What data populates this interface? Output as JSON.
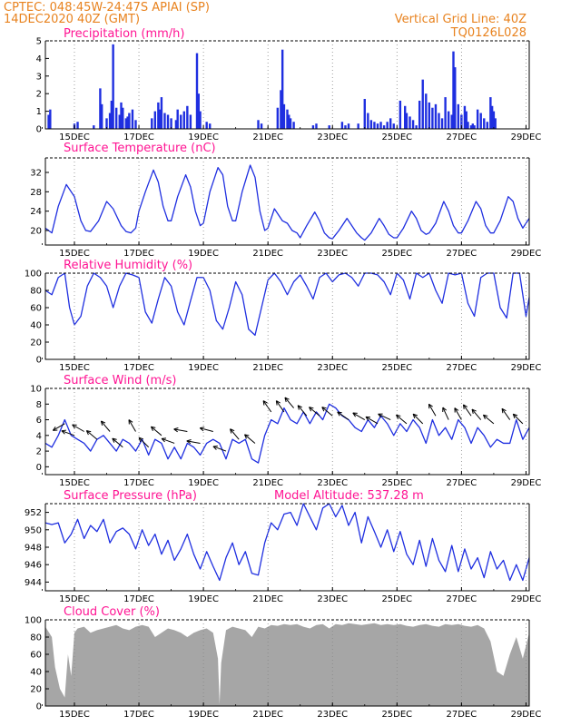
{
  "header": {
    "line1": "CPTEC:   048:45W-24:47S   APIAI (SP)",
    "line2": "14DEC2020 40Z (GMT)",
    "right1": "Vertical Grid Line: 40Z",
    "right2": "TQ0126L028"
  },
  "colors": {
    "header": "#e8821e",
    "titles": "#ff1493",
    "series": "#1f2fe0",
    "cloud": "#a6a6a6",
    "arrows": "#000000"
  },
  "chart_data": [
    {
      "type": "bar",
      "title": "Precipitation (mm/h)",
      "x_ticks": [
        "15DEC",
        "17DEC",
        "19DEC",
        "21DEC",
        "23DEC",
        "25DEC",
        "27DEC",
        "29DEC"
      ],
      "x_range_days": [
        14.1,
        29.1
      ],
      "ylim": [
        0,
        5
      ],
      "y_ticks": [
        0,
        1,
        2,
        3,
        4,
        5
      ],
      "grid": "vertical dotted at 40Z",
      "x": [
        14.2,
        14.25,
        15.0,
        15.1,
        15.6,
        15.8,
        15.85,
        16.0,
        16.1,
        16.15,
        16.2,
        16.3,
        16.4,
        16.45,
        16.5,
        16.6,
        16.65,
        16.7,
        16.8,
        16.9,
        17.4,
        17.5,
        17.6,
        17.65,
        17.7,
        17.8,
        17.9,
        18.0,
        18.15,
        18.2,
        18.3,
        18.4,
        18.5,
        18.6,
        18.8,
        18.85,
        18.9,
        19.1,
        19.2,
        20.7,
        20.8,
        21.3,
        21.4,
        21.45,
        21.5,
        21.6,
        21.65,
        21.7,
        21.8,
        22.4,
        22.5,
        22.9,
        23.3,
        23.4,
        23.5,
        23.8,
        24.0,
        24.1,
        24.2,
        24.3,
        24.4,
        24.5,
        24.6,
        24.7,
        24.8,
        24.9,
        25.1,
        25.25,
        25.3,
        25.4,
        25.5,
        25.6,
        25.7,
        25.8,
        25.9,
        26.0,
        26.1,
        26.2,
        26.3,
        26.4,
        26.5,
        26.6,
        26.7,
        26.75,
        26.8,
        26.9,
        27.0,
        27.1,
        27.15,
        27.2,
        27.3,
        27.35,
        27.4,
        27.5,
        27.6,
        27.7,
        27.8,
        27.9,
        27.95,
        28.0,
        28.05
      ],
      "values": [
        0.8,
        1.1,
        0.3,
        0.4,
        0.2,
        2.3,
        1.4,
        0.6,
        0.9,
        1.6,
        4.8,
        1.2,
        0.8,
        1.5,
        1.2,
        0.6,
        0.7,
        0.9,
        1.1,
        0.5,
        0.6,
        1.0,
        1.5,
        1.1,
        1.8,
        0.9,
        0.8,
        0.6,
        0.5,
        1.1,
        0.8,
        1.0,
        1.3,
        0.8,
        4.3,
        2.0,
        1.0,
        0.4,
        0.3,
        0.5,
        0.3,
        1.2,
        2.2,
        4.5,
        1.4,
        1.1,
        0.8,
        0.6,
        0.4,
        0.2,
        0.3,
        0.2,
        0.4,
        0.2,
        0.3,
        0.3,
        1.7,
        0.9,
        0.5,
        0.4,
        0.3,
        0.4,
        0.2,
        0.4,
        0.6,
        0.3,
        1.6,
        1.3,
        0.9,
        0.7,
        0.5,
        0.2,
        1.6,
        2.8,
        2.0,
        1.5,
        1.2,
        1.4,
        0.9,
        0.6,
        1.8,
        1.0,
        0.8,
        4.4,
        3.5,
        1.4,
        0.8,
        1.3,
        1.0,
        0.4,
        0.2,
        0.3,
        0.2,
        1.1,
        0.9,
        0.6,
        0.4,
        1.8,
        1.3,
        1.0,
        0.6
      ]
    },
    {
      "type": "line",
      "title": "Surface Temperature (nC)",
      "x_ticks": [
        "15DEC",
        "17DEC",
        "19DEC",
        "21DEC",
        "23DEC",
        "25DEC",
        "27DEC",
        "29DEC"
      ],
      "x_range_days": [
        14.1,
        29.1
      ],
      "ylim": [
        17,
        35
      ],
      "y_ticks": [
        20,
        24,
        28,
        32
      ],
      "grid": "vertical dotted at 40Z",
      "x": [
        14.1,
        14.3,
        14.5,
        14.75,
        15.0,
        15.2,
        15.35,
        15.5,
        15.75,
        16.0,
        16.2,
        16.45,
        16.6,
        16.75,
        16.9,
        17.0,
        17.2,
        17.45,
        17.6,
        17.75,
        17.9,
        18.0,
        18.2,
        18.45,
        18.6,
        18.75,
        18.9,
        19.0,
        19.2,
        19.45,
        19.6,
        19.75,
        19.9,
        20.0,
        20.2,
        20.45,
        20.6,
        20.75,
        20.9,
        21.0,
        21.2,
        21.45,
        21.6,
        21.75,
        21.9,
        22.0,
        22.2,
        22.45,
        22.6,
        22.75,
        22.9,
        23.0,
        23.2,
        23.45,
        23.6,
        23.75,
        23.9,
        24.0,
        24.2,
        24.45,
        24.6,
        24.75,
        24.9,
        25.0,
        25.2,
        25.45,
        25.6,
        25.75,
        25.9,
        26.0,
        26.2,
        26.45,
        26.6,
        26.75,
        26.9,
        27.0,
        27.2,
        27.45,
        27.6,
        27.75,
        27.9,
        28.0,
        28.2,
        28.45,
        28.6,
        28.75,
        28.9,
        29.1
      ],
      "values": [
        20.5,
        19.5,
        25,
        29.5,
        27,
        22,
        20,
        19.8,
        22,
        26,
        24.5,
        21,
        19.8,
        19.5,
        20.5,
        24,
        28,
        32.5,
        30,
        25,
        22,
        22,
        27,
        31.5,
        29,
        24,
        21,
        21.5,
        28,
        33,
        31.5,
        25,
        22,
        22,
        28,
        33.5,
        31,
        24,
        20,
        20.5,
        24.5,
        22,
        21.5,
        20,
        19.5,
        18.5,
        21,
        23.8,
        22,
        19.5,
        18.5,
        18.3,
        20,
        22.5,
        21,
        19.5,
        18.5,
        18,
        19.5,
        22.5,
        21,
        19.2,
        18.5,
        18.5,
        20.5,
        24,
        22.5,
        20,
        19.2,
        19.5,
        21.5,
        26,
        24,
        21,
        19.5,
        19.5,
        22,
        26,
        24.5,
        21,
        19.5,
        19.5,
        22,
        27,
        26,
        22.5,
        20.5,
        22.5
      ]
    },
    {
      "type": "line",
      "title": "Relative Humidity (%)",
      "x_ticks": [
        "15DEC",
        "17DEC",
        "19DEC",
        "21DEC",
        "23DEC",
        "25DEC",
        "27DEC",
        "29DEC"
      ],
      "x_range_days": [
        14.1,
        29.1
      ],
      "ylim": [
        0,
        100
      ],
      "y_ticks": [
        0,
        20,
        40,
        60,
        80,
        100
      ],
      "grid": "vertical dotted at 40Z",
      "x": [
        14.1,
        14.3,
        14.5,
        14.7,
        14.85,
        15.0,
        15.2,
        15.4,
        15.6,
        15.8,
        16.0,
        16.2,
        16.4,
        16.6,
        16.8,
        17.0,
        17.2,
        17.4,
        17.6,
        17.8,
        18.0,
        18.2,
        18.4,
        18.6,
        18.8,
        19.0,
        19.2,
        19.4,
        19.6,
        19.8,
        20.0,
        20.2,
        20.4,
        20.6,
        20.8,
        21.0,
        21.2,
        21.4,
        21.6,
        21.8,
        22.0,
        22.2,
        22.4,
        22.6,
        22.8,
        23.0,
        23.2,
        23.4,
        23.6,
        23.8,
        24.0,
        24.2,
        24.4,
        24.6,
        24.8,
        25.0,
        25.2,
        25.4,
        25.6,
        25.8,
        26.0,
        26.2,
        26.4,
        26.6,
        26.8,
        27.0,
        27.2,
        27.4,
        27.6,
        27.8,
        28.0,
        28.2,
        28.4,
        28.6,
        28.8,
        29.0,
        29.1
      ],
      "values": [
        80,
        75,
        95,
        100,
        60,
        40,
        50,
        85,
        100,
        95,
        85,
        60,
        85,
        100,
        98,
        95,
        55,
        42,
        70,
        95,
        85,
        55,
        40,
        68,
        95,
        95,
        80,
        45,
        35,
        60,
        90,
        75,
        35,
        28,
        60,
        92,
        100,
        90,
        75,
        90,
        98,
        85,
        70,
        95,
        100,
        90,
        98,
        100,
        95,
        85,
        100,
        100,
        98,
        90,
        75,
        100,
        92,
        70,
        100,
        95,
        100,
        80,
        65,
        100,
        98,
        100,
        65,
        50,
        95,
        100,
        100,
        60,
        48,
        100,
        100,
        50,
        72
      ]
    },
    {
      "type": "line",
      "title": "Surface Wind (m/s)",
      "x_ticks": [
        "15DEC",
        "17DEC",
        "19DEC",
        "21DEC",
        "23DEC",
        "25DEC",
        "27DEC",
        "29DEC"
      ],
      "x_range_days": [
        14.1,
        29.1
      ],
      "ylim": [
        -1,
        10
      ],
      "y_ticks": [
        0,
        2,
        4,
        6,
        8,
        10
      ],
      "grid": "vertical dotted at 40Z",
      "x": [
        14.1,
        14.3,
        14.5,
        14.7,
        14.9,
        15.1,
        15.3,
        15.5,
        15.7,
        15.9,
        16.1,
        16.3,
        16.5,
        16.7,
        16.9,
        17.1,
        17.3,
        17.5,
        17.7,
        17.9,
        18.1,
        18.3,
        18.5,
        18.7,
        18.9,
        19.1,
        19.3,
        19.5,
        19.7,
        19.9,
        20.1,
        20.3,
        20.5,
        20.7,
        20.9,
        21.1,
        21.3,
        21.5,
        21.7,
        21.9,
        22.1,
        22.3,
        22.5,
        22.7,
        22.9,
        23.1,
        23.3,
        23.5,
        23.7,
        23.9,
        24.1,
        24.3,
        24.5,
        24.7,
        24.9,
        25.1,
        25.3,
        25.5,
        25.7,
        25.9,
        26.1,
        26.3,
        26.5,
        26.7,
        26.9,
        27.1,
        27.3,
        27.5,
        27.7,
        27.9,
        28.1,
        28.3,
        28.5,
        28.7,
        28.9,
        29.1
      ],
      "values": [
        3,
        2.5,
        4,
        6,
        4,
        3.5,
        3,
        2,
        3.5,
        4,
        3,
        2,
        3.5,
        3,
        2,
        3.5,
        1.5,
        3.5,
        3,
        1,
        2.5,
        1,
        3,
        2.5,
        1.5,
        3,
        3.5,
        3,
        1,
        3.5,
        3,
        3.5,
        1,
        0.5,
        4,
        6,
        5.5,
        7.5,
        6,
        5.5,
        7,
        5.5,
        7,
        6,
        8,
        7.5,
        6.5,
        6,
        5,
        4.5,
        6,
        5,
        6.5,
        5.5,
        4,
        5.5,
        4.5,
        6,
        5,
        3,
        6,
        4,
        5,
        3.5,
        6,
        5,
        3,
        5,
        4,
        2.5,
        3.5,
        3,
        3,
        6,
        3.5,
        5
      ]
    },
    {
      "type": "line",
      "title": "Surface Pressure (hPa)",
      "annotation": "Model Altitude: 537.28  m",
      "x_ticks": [
        "15DEC",
        "17DEC",
        "19DEC",
        "21DEC",
        "23DEC",
        "25DEC",
        "27DEC",
        "29DEC"
      ],
      "x_range_days": [
        14.1,
        29.1
      ],
      "ylim": [
        943,
        953
      ],
      "y_ticks": [
        944,
        946,
        948,
        950,
        952
      ],
      "grid": "vertical dotted at 40Z",
      "x": [
        14.1,
        14.3,
        14.5,
        14.7,
        14.9,
        15.1,
        15.3,
        15.5,
        15.7,
        15.9,
        16.1,
        16.3,
        16.5,
        16.7,
        16.9,
        17.1,
        17.3,
        17.5,
        17.7,
        17.9,
        18.1,
        18.3,
        18.5,
        18.7,
        18.9,
        19.1,
        19.3,
        19.5,
        19.7,
        19.9,
        20.1,
        20.3,
        20.5,
        20.7,
        20.9,
        21.1,
        21.3,
        21.5,
        21.7,
        21.9,
        22.1,
        22.3,
        22.5,
        22.7,
        22.9,
        23.1,
        23.3,
        23.5,
        23.7,
        23.9,
        24.1,
        24.3,
        24.5,
        24.7,
        24.9,
        25.1,
        25.3,
        25.5,
        25.7,
        25.9,
        26.1,
        26.3,
        26.5,
        26.7,
        26.9,
        27.1,
        27.3,
        27.5,
        27.7,
        27.9,
        28.1,
        28.3,
        28.5,
        28.7,
        28.9,
        29.1
      ],
      "values": [
        950.8,
        950.6,
        950.8,
        948.5,
        949.5,
        951.2,
        949,
        950.5,
        949.8,
        951.2,
        948.5,
        949.8,
        950.2,
        949.5,
        947.8,
        950,
        948.2,
        949.5,
        947.2,
        948.8,
        946.5,
        947.8,
        949.5,
        947.2,
        945.5,
        947.5,
        945.8,
        944.2,
        946.8,
        948.5,
        946,
        947.5,
        945,
        944.8,
        948.5,
        950.8,
        950,
        951.8,
        952,
        950.5,
        953,
        951.5,
        950,
        952.5,
        953,
        951.5,
        952.8,
        950.5,
        952,
        948.5,
        951.5,
        949.8,
        948,
        950,
        947.5,
        949.8,
        947.2,
        946,
        948.8,
        945.8,
        949,
        946.5,
        945.2,
        948.2,
        945.2,
        947.8,
        945.5,
        946.8,
        944.5,
        947.5,
        945.5,
        946.5,
        944.2,
        946,
        944.2,
        946.8
      ]
    },
    {
      "type": "area",
      "title": "Cloud Cover (%)",
      "x_ticks": [
        "15DEC",
        "17DEC",
        "19DEC",
        "21DEC",
        "23DEC",
        "25DEC",
        "27DEC",
        "29DEC"
      ],
      "x_range_days": [
        14.1,
        29.1
      ],
      "ylim": [
        0,
        100
      ],
      "y_ticks": [
        0,
        20,
        40,
        60,
        80,
        100
      ],
      "grid": "vertical dotted at 40Z",
      "x": [
        14.1,
        14.3,
        14.4,
        14.55,
        14.7,
        14.8,
        14.9,
        15.0,
        15.1,
        15.3,
        15.5,
        15.7,
        15.9,
        16.1,
        16.3,
        16.5,
        16.7,
        16.9,
        17.1,
        17.3,
        17.5,
        17.7,
        17.9,
        18.1,
        18.3,
        18.5,
        18.7,
        18.9,
        19.1,
        19.3,
        19.45,
        19.5,
        19.55,
        19.7,
        19.9,
        20.1,
        20.3,
        20.5,
        20.7,
        20.9,
        21.1,
        21.3,
        21.5,
        21.7,
        21.9,
        22.1,
        22.3,
        22.5,
        22.7,
        22.9,
        23.1,
        23.3,
        23.5,
        23.7,
        23.9,
        24.1,
        24.3,
        24.5,
        24.7,
        24.9,
        25.1,
        25.3,
        25.5,
        25.7,
        25.9,
        26.1,
        26.3,
        26.5,
        26.7,
        26.9,
        27.1,
        27.3,
        27.5,
        27.7,
        27.9,
        28.1,
        28.3,
        28.5,
        28.7,
        28.9,
        29.1
      ],
      "values": [
        92,
        80,
        45,
        20,
        10,
        60,
        35,
        85,
        90,
        92,
        85,
        88,
        90,
        92,
        94,
        90,
        88,
        92,
        94,
        92,
        80,
        85,
        90,
        88,
        85,
        80,
        85,
        88,
        90,
        85,
        55,
        2,
        50,
        88,
        92,
        90,
        88,
        80,
        92,
        90,
        94,
        93,
        95,
        94,
        95,
        92,
        90,
        94,
        95,
        90,
        95,
        94,
        96,
        95,
        94,
        95,
        96,
        94,
        95,
        94,
        95,
        93,
        92,
        94,
        95,
        93,
        92,
        95,
        94,
        95,
        93,
        92,
        94,
        90,
        75,
        40,
        35,
        60,
        80,
        55,
        85
      ]
    }
  ],
  "wind_arrows": {
    "x": [
      14.7,
      15.0,
      15.3,
      15.7,
      16.1,
      16.5,
      16.9,
      17.3,
      17.7,
      18.1,
      18.5,
      18.9,
      19.3,
      19.7,
      20.1,
      20.6,
      21.1,
      21.5,
      21.8,
      22.2,
      22.6,
      23.0,
      23.5,
      24.0,
      24.4,
      24.8,
      25.3,
      25.8,
      26.2,
      26.6,
      27.0,
      27.3,
      27.6,
      28.0,
      28.5,
      28.9
    ],
    "y": [
      5.5,
      4.0,
      4.5,
      3.5,
      4.5,
      2.5,
      4.5,
      2.5,
      4.0,
      3.0,
      4.5,
      3.0,
      4.5,
      2.0,
      3.5,
      3.0,
      7.0,
      7.0,
      7.5,
      6.5,
      6.5,
      6.5,
      6.0,
      6.0,
      5.5,
      6.0,
      5.5,
      5.5,
      6.5,
      6.0,
      6.0,
      6.5,
      6.0,
      5.5,
      6.0,
      5.5
    ],
    "angle_deg": [
      210,
      160,
      150,
      140,
      130,
      140,
      120,
      135,
      140,
      160,
      170,
      170,
      165,
      160,
      130,
      140,
      125,
      125,
      130,
      130,
      140,
      140,
      145,
      150,
      150,
      155,
      140,
      135,
      120,
      115,
      120,
      125,
      130,
      140,
      125,
      135
    ],
    "note": "black wind-direction arrows"
  }
}
